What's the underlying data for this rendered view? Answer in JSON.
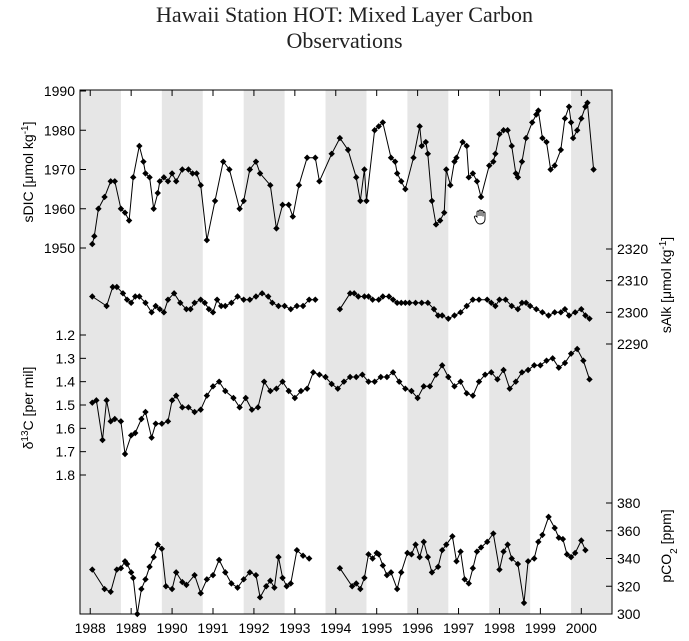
{
  "chart_data": {
    "type": "line",
    "title_line1": "Hawaii Station HOT: Mixed Layer Carbon",
    "title_line2": "Observations",
    "x_axis": {
      "range": [
        1987.75,
        2000.75
      ],
      "ticks": [
        1988,
        1989,
        1990,
        1991,
        1992,
        1993,
        1994,
        1995,
        1996,
        1997,
        1998,
        1999,
        2000
      ],
      "tick_labels": [
        "1988",
        "1989",
        "1990",
        "1991",
        "1992",
        "1993",
        "1994",
        "1995",
        "1996",
        "1997",
        "1998",
        "1999",
        "2000"
      ],
      "shaded_year_bands": [
        [
          1987.75,
          1988.75
        ],
        [
          1989.75,
          1990.75
        ],
        [
          1991.75,
          1992.75
        ],
        [
          1993.75,
          1994.75
        ],
        [
          1995.75,
          1996.75
        ],
        [
          1997.75,
          1998.75
        ],
        [
          1999.75,
          2000.75
        ]
      ],
      "band_color": "#e6e6e6"
    },
    "panels": [
      {
        "id": "sdic",
        "side": "left",
        "label_main": "sDIC [μmol kg",
        "label_sup": "-1",
        "label_close": "]",
        "ticks": [
          1950,
          1960,
          1970,
          1980,
          1990
        ],
        "tick_labels": [
          "1950",
          "1960",
          "1970",
          "1980",
          "1990"
        ],
        "ylim": [
          1950,
          1990
        ],
        "x": [
          1988.05,
          1988.1,
          1988.2,
          1988.35,
          1988.5,
          1988.6,
          1988.75,
          1988.85,
          1988.95,
          1989.05,
          1989.2,
          1989.3,
          1989.35,
          1989.45,
          1989.55,
          1989.65,
          1989.7,
          1989.8,
          1989.9,
          1990.0,
          1990.1,
          1990.25,
          1990.4,
          1990.5,
          1990.6,
          1990.7,
          1990.85,
          1991.05,
          1991.25,
          1991.4,
          1991.65,
          1991.75,
          1991.9,
          1992.05,
          1992.15,
          1992.4,
          1992.55,
          1992.7,
          1992.85,
          1992.95,
          1993.1,
          1993.3,
          1993.5,
          1993.6,
          1993.9,
          1994.1,
          1994.3,
          1994.5,
          1994.6,
          1994.7,
          1994.75,
          1994.95,
          1995.05,
          1995.15,
          1995.35,
          1995.45,
          1995.5,
          1995.6,
          1995.7,
          1995.9,
          1996.05,
          1996.1,
          1996.2,
          1996.25,
          1996.35,
          1996.45,
          1996.55,
          1996.65,
          1996.7,
          1996.8,
          1996.9,
          1996.95,
          1997.1,
          1997.2,
          1997.25,
          1997.35,
          1997.45,
          1997.55,
          1997.75,
          1997.85,
          1997.9,
          1998.0,
          1998.1,
          1998.2,
          1998.3,
          1998.4,
          1998.45,
          1998.55,
          1998.65,
          1998.8,
          1998.9,
          1998.95,
          1999.05,
          1999.15,
          1999.25,
          1999.35,
          1999.5,
          1999.6,
          1999.7,
          1999.75,
          1999.8,
          1999.9,
          2000.0,
          2000.1,
          2000.15,
          2000.3
        ],
        "values": [
          1951,
          1953,
          1960,
          1963,
          1967,
          1967,
          1960,
          1959,
          1957,
          1968,
          1976,
          1972,
          1969,
          1968,
          1960,
          1964,
          1967,
          1968,
          1967,
          1969,
          1967,
          1970,
          1970,
          1969,
          1969,
          1966,
          1952,
          1962,
          1972,
          1970,
          1960,
          1962,
          1970,
          1972,
          1969,
          1966,
          1955,
          1961,
          1961,
          1958,
          1966,
          1973,
          1973,
          1967,
          1974,
          1978,
          1975,
          1968,
          1962,
          1970,
          1962,
          1980,
          1981,
          1982,
          1973,
          1972,
          1969,
          1967,
          1965,
          1973,
          1981,
          1976,
          1977,
          1974,
          1962,
          1956,
          1957,
          1959,
          1970,
          1966,
          1972,
          1973,
          1977,
          1976,
          1968,
          1969,
          1967,
          1963,
          1971,
          1972,
          1974,
          1979,
          1980,
          1980,
          1976,
          1969,
          1968,
          1972,
          1978,
          1982,
          1984,
          1985,
          1978,
          1977,
          1970,
          1971,
          1975,
          1983,
          1986,
          1982,
          1978,
          1980,
          1983,
          1986,
          1987,
          1970
        ]
      },
      {
        "id": "salk",
        "side": "right",
        "label_main": "sAlk [μmol kg",
        "label_sup": "-1",
        "label_close": "]",
        "ticks": [
          2290,
          2300,
          2310,
          2320
        ],
        "tick_labels": [
          "2290",
          "2300",
          "2310",
          "2320"
        ],
        "ylim": [
          2290,
          2320
        ],
        "x": [
          1988.05,
          1988.4,
          1988.55,
          1988.65,
          1988.8,
          1988.9,
          1989.0,
          1989.1,
          1989.2,
          1989.35,
          1989.5,
          1989.6,
          1989.7,
          1989.8,
          1989.9,
          1990.05,
          1990.2,
          1990.35,
          1990.45,
          1990.55,
          1990.7,
          1990.8,
          1990.9,
          1991.0,
          1991.1,
          1991.2,
          1991.3,
          1991.45,
          1991.6,
          1991.75,
          1991.9,
          1992.05,
          1992.2,
          1992.35,
          1992.45,
          1992.6,
          1992.75,
          1992.9,
          1993.05,
          1993.2,
          1993.35,
          1993.5,
          1994.1,
          1994.35,
          1994.45,
          1994.55,
          1994.7,
          1994.8,
          1994.9,
          1995.05,
          1995.15,
          1995.3,
          1995.4,
          1995.5,
          1995.6,
          1995.7,
          1995.8,
          1995.95,
          1996.1,
          1996.25,
          1996.4,
          1996.5,
          1996.6,
          1996.75,
          1996.9,
          1997.05,
          1997.2,
          1997.35,
          1997.5,
          1997.7,
          1997.8,
          1997.9,
          1998.0,
          1998.15,
          1998.3,
          1998.45,
          1998.55,
          1998.65,
          1998.75,
          1998.9,
          1999.05,
          1999.2,
          1999.35,
          1999.5,
          1999.6,
          1999.7,
          1999.85,
          2000.0,
          2000.1,
          2000.2
        ],
        "values": [
          2305,
          2302,
          2308,
          2308,
          2306,
          2304,
          2303,
          2305,
          2305,
          2303,
          2300,
          2302,
          2301,
          2300,
          2304,
          2306,
          2303,
          2301,
          2301,
          2303,
          2304,
          2303,
          2301,
          2300,
          2304,
          2302,
          2302,
          2303,
          2305,
          2304,
          2304,
          2305,
          2306,
          2305,
          2303,
          2302,
          2302,
          2301,
          2302,
          2302,
          2304,
          2304,
          2301,
          2306,
          2306,
          2305,
          2305,
          2305,
          2304,
          2304,
          2305,
          2305,
          2304,
          2303,
          2303,
          2303,
          2303,
          2303,
          2303,
          2303,
          2301,
          2299,
          2299,
          2298,
          2299,
          2300,
          2302,
          2304,
          2304,
          2304,
          2303,
          2302,
          2304,
          2304,
          2302,
          2301,
          2303,
          2303,
          2302,
          2301,
          2300,
          2299,
          2300,
          2300,
          2301,
          2299,
          2300,
          2301,
          2299,
          2298
        ]
      },
      {
        "id": "d13c",
        "side": "left",
        "label_delta": "δ",
        "label_sup": "13",
        "label_rest": "C [per mil]",
        "ticks": [
          1.2,
          1.3,
          1.4,
          1.5,
          1.6,
          1.7,
          1.8
        ],
        "tick_labels": [
          "1.2",
          "1.3",
          "1.4",
          "1.5",
          "1.6",
          "1.7",
          "1.8"
        ],
        "ylim": [
          1.2,
          1.8
        ],
        "inverted": true,
        "x": [
          1988.05,
          1988.15,
          1988.3,
          1988.4,
          1988.5,
          1988.6,
          1988.75,
          1988.85,
          1989.0,
          1989.1,
          1989.25,
          1989.35,
          1989.5,
          1989.6,
          1989.75,
          1989.9,
          1990.0,
          1990.1,
          1990.25,
          1990.4,
          1990.55,
          1990.7,
          1990.85,
          1991.0,
          1991.15,
          1991.3,
          1991.5,
          1991.65,
          1991.8,
          1991.95,
          1992.1,
          1992.25,
          1992.4,
          1992.55,
          1992.7,
          1992.85,
          1993.0,
          1993.15,
          1993.3,
          1993.45,
          1993.6,
          1993.75,
          1993.9,
          1994.05,
          1994.2,
          1994.35,
          1994.5,
          1994.65,
          1994.8,
          1994.95,
          1995.1,
          1995.25,
          1995.4,
          1995.55,
          1995.7,
          1995.85,
          1996.0,
          1996.15,
          1996.3,
          1996.45,
          1996.6,
          1996.75,
          1996.9,
          1997.05,
          1997.2,
          1997.35,
          1997.5,
          1997.65,
          1997.8,
          1997.95,
          1998.1,
          1998.25,
          1998.4,
          1998.55,
          1998.7,
          1998.85,
          1999.0,
          1999.15,
          1999.3,
          1999.45,
          1999.6,
          1999.75,
          1999.9,
          2000.05,
          2000.2
        ],
        "values": [
          1.49,
          1.48,
          1.65,
          1.48,
          1.57,
          1.56,
          1.57,
          1.71,
          1.63,
          1.62,
          1.56,
          1.53,
          1.64,
          1.58,
          1.58,
          1.57,
          1.48,
          1.46,
          1.51,
          1.51,
          1.53,
          1.52,
          1.46,
          1.42,
          1.4,
          1.44,
          1.47,
          1.51,
          1.47,
          1.52,
          1.51,
          1.4,
          1.44,
          1.43,
          1.4,
          1.44,
          1.47,
          1.44,
          1.43,
          1.36,
          1.37,
          1.38,
          1.41,
          1.43,
          1.4,
          1.38,
          1.38,
          1.37,
          1.4,
          1.4,
          1.38,
          1.38,
          1.36,
          1.4,
          1.43,
          1.44,
          1.47,
          1.42,
          1.42,
          1.37,
          1.33,
          1.38,
          1.42,
          1.4,
          1.45,
          1.46,
          1.4,
          1.37,
          1.36,
          1.39,
          1.35,
          1.43,
          1.4,
          1.36,
          1.35,
          1.33,
          1.33,
          1.31,
          1.3,
          1.34,
          1.32,
          1.28,
          1.26,
          1.31,
          1.39
        ]
      },
      {
        "id": "pco2",
        "side": "right",
        "label_main": "pCO",
        "label_sub": "2",
        "label_rest": " [ppm]",
        "ticks": [
          300,
          320,
          340,
          360,
          380
        ],
        "tick_labels": [
          "300",
          "320",
          "340",
          "360",
          "380"
        ],
        "ylim": [
          300,
          380
        ],
        "x": [
          1988.05,
          1988.35,
          1988.5,
          1988.65,
          1988.75,
          1988.85,
          1988.9,
          1989.0,
          1989.05,
          1989.15,
          1989.25,
          1989.35,
          1989.45,
          1989.55,
          1989.65,
          1989.75,
          1989.85,
          1990.0,
          1990.1,
          1990.25,
          1990.35,
          1990.55,
          1990.7,
          1990.85,
          1991.0,
          1991.15,
          1991.3,
          1991.45,
          1991.6,
          1991.75,
          1991.9,
          1992.05,
          1992.15,
          1992.3,
          1992.4,
          1992.5,
          1992.6,
          1992.7,
          1992.8,
          1992.9,
          1993.05,
          1993.2,
          1993.35,
          1994.1,
          1994.4,
          1994.5,
          1994.6,
          1994.7,
          1994.8,
          1994.9,
          1995.0,
          1995.05,
          1995.15,
          1995.25,
          1995.35,
          1995.5,
          1995.6,
          1995.75,
          1995.85,
          1995.95,
          1996.05,
          1996.15,
          1996.25,
          1996.35,
          1996.5,
          1996.6,
          1996.7,
          1996.85,
          1996.95,
          1997.05,
          1997.15,
          1997.25,
          1997.35,
          1997.45,
          1997.55,
          1997.7,
          1997.85,
          1998.0,
          1998.1,
          1998.2,
          1998.3,
          1998.45,
          1998.6,
          1998.7,
          1998.85,
          1998.95,
          1999.05,
          1999.2,
          1999.35,
          1999.45,
          1999.55,
          1999.65,
          1999.75,
          1999.85,
          2000.0,
          2000.1
        ],
        "values": [
          332,
          318,
          316,
          332,
          333,
          338,
          336,
          330,
          326,
          300,
          318,
          325,
          334,
          341,
          350,
          347,
          320,
          318,
          330,
          323,
          321,
          328,
          315,
          325,
          328,
          339,
          330,
          322,
          319,
          325,
          330,
          328,
          312,
          320,
          324,
          319,
          341,
          326,
          320,
          322,
          346,
          342,
          340,
          333,
          320,
          322,
          318,
          326,
          343,
          340,
          344,
          343,
          335,
          328,
          330,
          318,
          330,
          344,
          343,
          350,
          341,
          352,
          341,
          330,
          334,
          346,
          350,
          356,
          338,
          345,
          325,
          322,
          333,
          345,
          348,
          352,
          358,
          332,
          345,
          350,
          340,
          336,
          308,
          338,
          340,
          352,
          357,
          370,
          362,
          355,
          354,
          343,
          341,
          344,
          353,
          346
        ]
      }
    ],
    "grid": false
  }
}
